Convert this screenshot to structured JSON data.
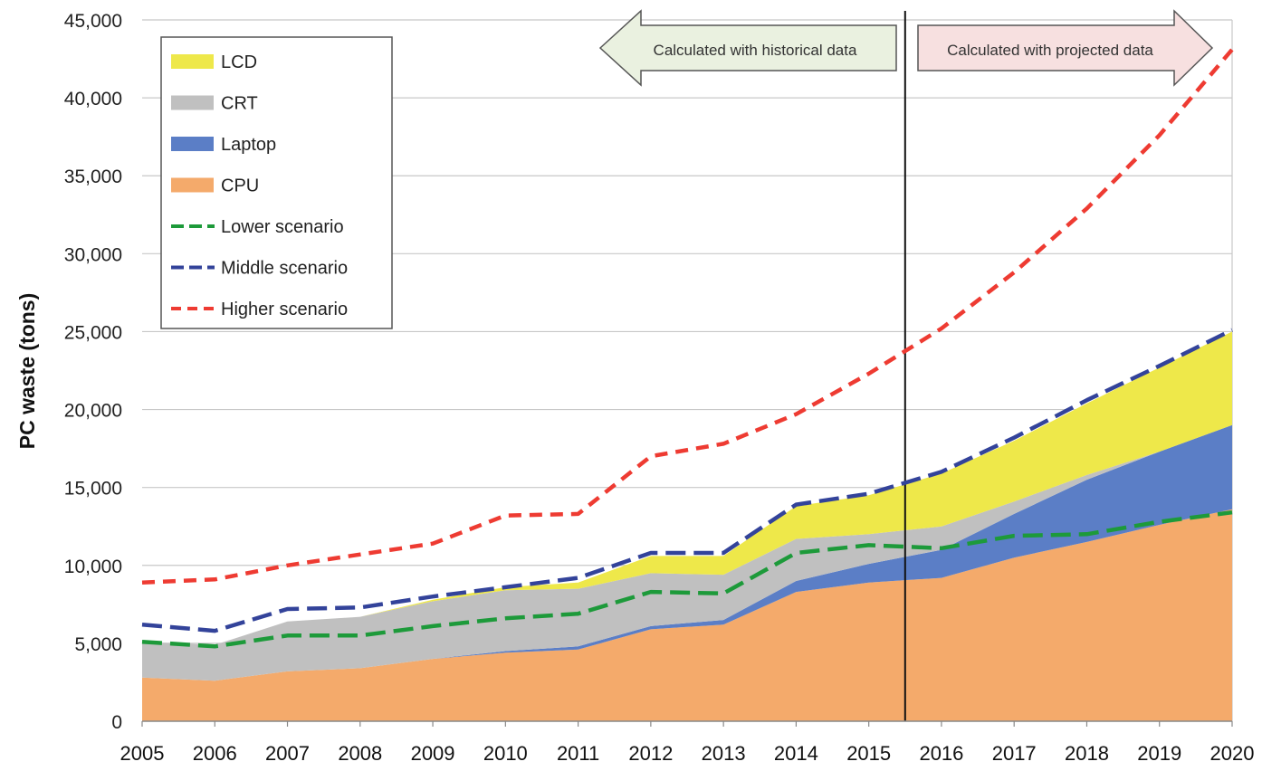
{
  "chart_data": {
    "type": "area",
    "ylabel": "PC waste (tons)",
    "xlabel": "",
    "title": "",
    "ylim": [
      0,
      45000
    ],
    "yticks": [
      0,
      5000,
      10000,
      15000,
      20000,
      25000,
      30000,
      35000,
      40000,
      45000
    ],
    "ytick_labels": [
      "0",
      "5,000",
      "10,000",
      "15,000",
      "20,000",
      "25,000",
      "30,000",
      "35,000",
      "40,000",
      "45,000"
    ],
    "x": [
      2005,
      2006,
      2007,
      2008,
      2009,
      2010,
      2011,
      2012,
      2013,
      2014,
      2015,
      2016,
      2017,
      2018,
      2019,
      2020
    ],
    "xtick_labels": [
      "2005",
      "2006",
      "2007",
      "2008",
      "2009",
      "2010",
      "2011",
      "2012",
      "2013",
      "2014",
      "2015",
      "2016",
      "2017",
      "2018",
      "2019",
      "2020"
    ],
    "grid": "horizontal",
    "legend_position": "top-left",
    "stacked_areas": [
      {
        "name": "CPU",
        "color": "#f4aa6b",
        "values": [
          2800,
          2600,
          3200,
          3400,
          4000,
          4400,
          4600,
          5900,
          6200,
          8300,
          8900,
          9200,
          10500,
          11500,
          12600,
          13600
        ]
      },
      {
        "name": "Laptop",
        "color": "#5b7ec6",
        "values": [
          0,
          0,
          0,
          0,
          0,
          100,
          200,
          200,
          300,
          700,
          1200,
          1800,
          2800,
          4000,
          4700,
          5400
        ]
      },
      {
        "name": "CRT",
        "color": "#c0c0c0",
        "values": [
          2300,
          2300,
          3200,
          3300,
          3700,
          3900,
          3700,
          3400,
          2900,
          2700,
          1900,
          1500,
          800,
          300,
          0,
          0
        ]
      },
      {
        "name": "LCD",
        "color": "#eee84a",
        "values": [
          0,
          0,
          0,
          0,
          100,
          200,
          400,
          1100,
          1200,
          2100,
          2500,
          3400,
          3900,
          4600,
          5400,
          6000
        ]
      }
    ],
    "lines": [
      {
        "name": "Lower scenario",
        "color": "#1d9a3a",
        "dash": "long",
        "values": [
          5100,
          4800,
          5500,
          5500,
          6100,
          6600,
          6900,
          8300,
          8200,
          10800,
          11300,
          11100,
          11900,
          12000,
          12800,
          13400
        ]
      },
      {
        "name": "Middle scenario",
        "color": "#33439a",
        "dash": "long",
        "values": [
          6200,
          5800,
          7200,
          7300,
          8000,
          8600,
          9200,
          10800,
          10800,
          13900,
          14600,
          16000,
          18200,
          20600,
          22800,
          25100
        ]
      },
      {
        "name": "Higher scenario",
        "color": "#ee3b32",
        "dash": "short",
        "values": [
          8900,
          9100,
          10000,
          10700,
          11400,
          13200,
          13300,
          17000,
          17800,
          19700,
          22300,
          25200,
          28800,
          32900,
          37600,
          43100
        ]
      }
    ],
    "divider_x": 2015.5,
    "annotations": [
      {
        "text": "Calculated with historical data",
        "direction": "left",
        "fill": "#eaf1e0"
      },
      {
        "text": "Calculated with projected data",
        "direction": "right",
        "fill": "#f7e0e0"
      }
    ],
    "legend": [
      {
        "label": "LCD",
        "kind": "area",
        "color": "#eee84a"
      },
      {
        "label": "CRT",
        "kind": "area",
        "color": "#c0c0c0"
      },
      {
        "label": "Laptop",
        "kind": "area",
        "color": "#5b7ec6"
      },
      {
        "label": "CPU",
        "kind": "area",
        "color": "#f4aa6b"
      },
      {
        "label": "Lower scenario",
        "kind": "line",
        "color": "#1d9a3a"
      },
      {
        "label": "Middle scenario",
        "kind": "line",
        "color": "#33439a"
      },
      {
        "label": "Higher scenario",
        "kind": "line",
        "color": "#ee3b32"
      }
    ]
  }
}
